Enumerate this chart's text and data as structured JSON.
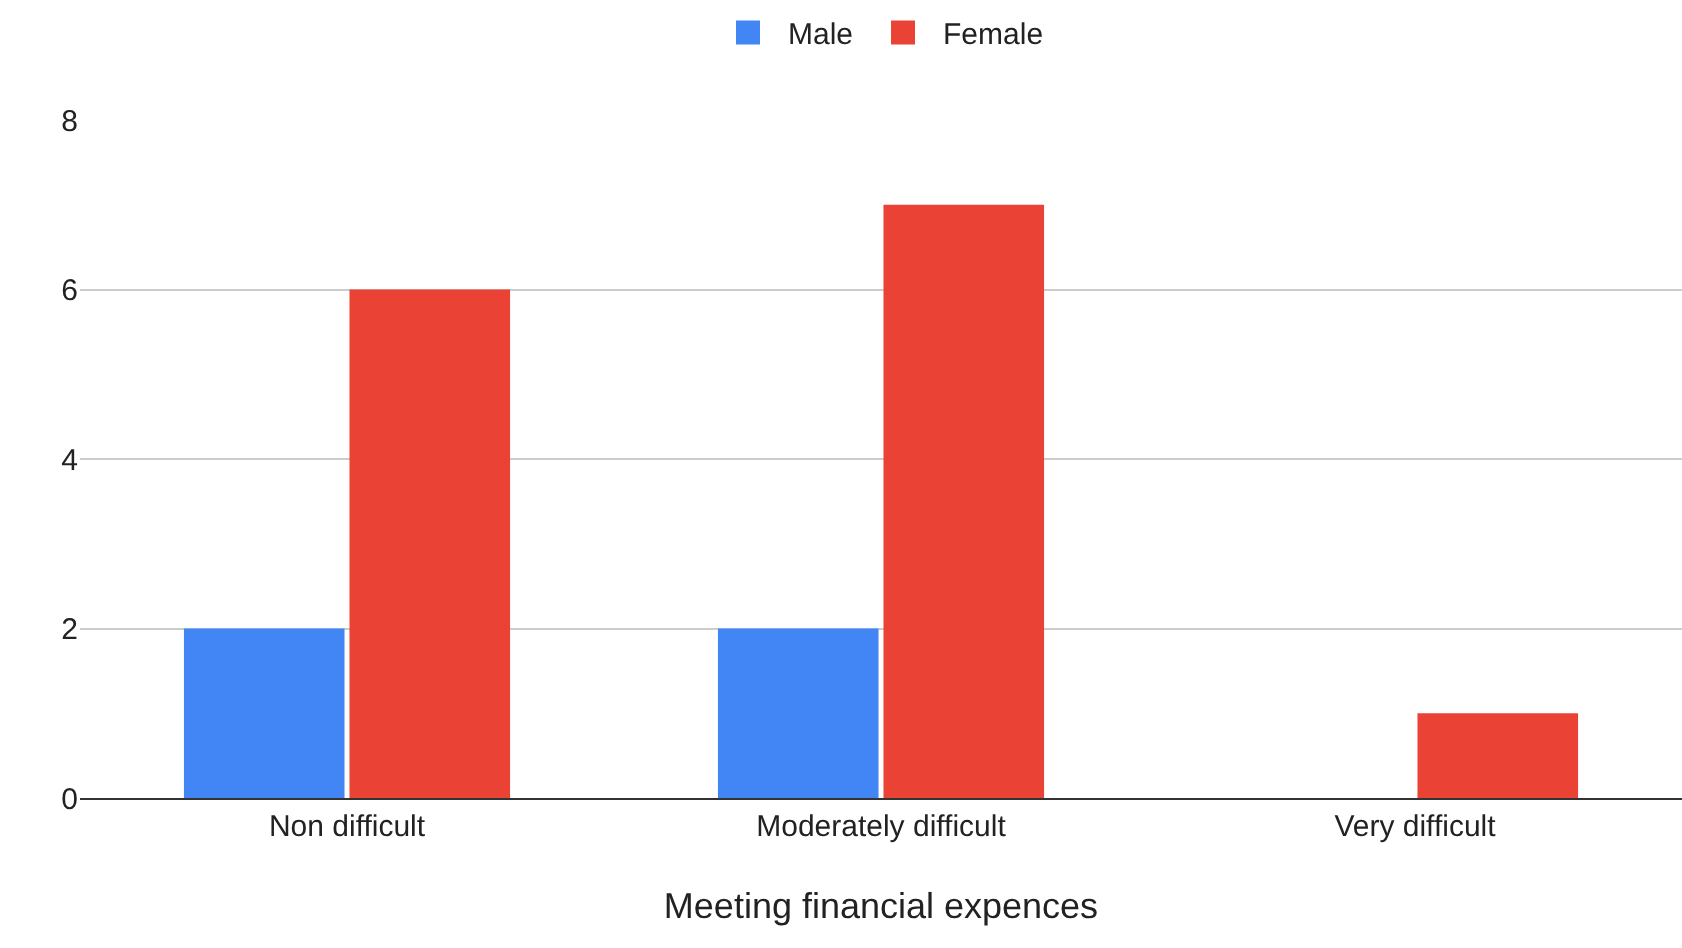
{
  "chart_data": {
    "type": "bar",
    "xlabel": "Meeting financial expences",
    "categories": [
      "Non difficult",
      "Moderately difficult",
      "Very difficult"
    ],
    "series": [
      {
        "name": "Male",
        "color": "#4285f4",
        "values": [
          2,
          2,
          0
        ]
      },
      {
        "name": "Female",
        "color": "#ea4335",
        "values": [
          6,
          7,
          1
        ]
      }
    ],
    "ylim": [
      0,
      8
    ],
    "yticks": [
      0,
      2,
      4,
      6,
      8
    ],
    "grid": "y",
    "legend": "top"
  }
}
